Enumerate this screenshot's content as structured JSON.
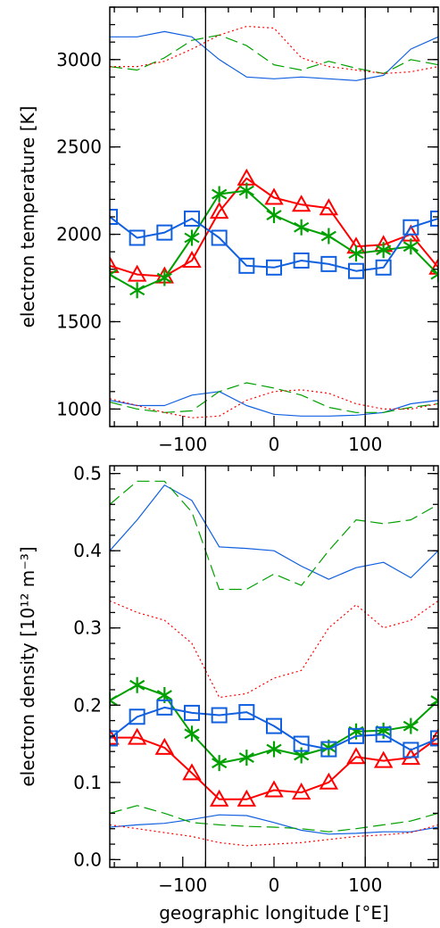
{
  "chart_data": [
    {
      "type": "line",
      "id": "temperature",
      "xlabel": "",
      "ylabel": "electron temperature [K]",
      "xlim": [
        -180,
        180
      ],
      "ylim": [
        900,
        3300
      ],
      "xticks": [
        -100,
        0,
        100
      ],
      "xtick_labels": [
        "−100",
        "0",
        "100"
      ],
      "yticks": [
        1000,
        1500,
        2000,
        2500,
        3000
      ],
      "ytick_labels": [
        "1000",
        "1500",
        "2000",
        "2500",
        "3000"
      ],
      "vlines": [
        -75,
        100
      ],
      "series": [
        {
          "color": "#ff0000",
          "marker": "triangle",
          "style": "solid",
          "x": [
            -180,
            -150,
            -120,
            -90,
            -60,
            -30,
            0,
            30,
            60,
            90,
            120,
            150,
            180
          ],
          "y": [
            1820,
            1770,
            1760,
            1850,
            2130,
            2320,
            2210,
            2170,
            2150,
            1930,
            1940,
            2000,
            1810
          ]
        },
        {
          "color": "#00a000",
          "marker": "asterisk",
          "style": "solid",
          "x": [
            -180,
            -150,
            -120,
            -90,
            -60,
            -30,
            0,
            30,
            60,
            90,
            120,
            150,
            180
          ],
          "y": [
            1770,
            1680,
            1750,
            1980,
            2230,
            2250,
            2110,
            2040,
            1990,
            1890,
            1910,
            1930,
            1770
          ]
        },
        {
          "color": "#1060e0",
          "marker": "square",
          "style": "solid",
          "x": [
            -180,
            -150,
            -120,
            -90,
            -60,
            -30,
            0,
            30,
            60,
            90,
            120,
            150,
            180
          ],
          "y": [
            2100,
            1980,
            2010,
            2090,
            1980,
            1820,
            1810,
            1850,
            1830,
            1790,
            1810,
            2040,
            2090
          ]
        },
        {
          "color": "#1060e0",
          "marker": "none",
          "style": "solid",
          "x": [
            -180,
            -150,
            -120,
            -90,
            -60,
            -30,
            0,
            30,
            60,
            90,
            120,
            150,
            180
          ],
          "y": [
            3130,
            3130,
            3160,
            3130,
            3000,
            2900,
            2890,
            2900,
            2890,
            2880,
            2910,
            3060,
            3130
          ]
        },
        {
          "color": "#00a000",
          "marker": "none",
          "style": "dashed",
          "x": [
            -180,
            -150,
            -120,
            -90,
            -60,
            -30,
            0,
            30,
            60,
            90,
            120,
            150,
            180
          ],
          "y": [
            2960,
            2940,
            3010,
            3110,
            3140,
            3080,
            2970,
            2940,
            2990,
            2950,
            2920,
            3000,
            2970
          ]
        },
        {
          "color": "#ff0000",
          "marker": "none",
          "style": "dotted",
          "x": [
            -180,
            -150,
            -120,
            -90,
            -60,
            -30,
            0,
            30,
            60,
            90,
            120,
            150,
            180
          ],
          "y": [
            2960,
            2960,
            2990,
            3060,
            3140,
            3190,
            3180,
            3010,
            2960,
            2940,
            2920,
            2930,
            2960
          ]
        },
        {
          "color": "#1060e0",
          "marker": "none",
          "style": "solid",
          "x": [
            -180,
            -150,
            -120,
            -90,
            -60,
            -30,
            0,
            30,
            60,
            90,
            120,
            150,
            180
          ],
          "y": [
            1050,
            1020,
            1020,
            1080,
            1100,
            1020,
            970,
            960,
            960,
            965,
            980,
            1030,
            1050
          ]
        },
        {
          "color": "#00a000",
          "marker": "none",
          "style": "dashed",
          "x": [
            -180,
            -150,
            -120,
            -90,
            -60,
            -30,
            0,
            30,
            60,
            90,
            120,
            150,
            180
          ],
          "y": [
            1040,
            1000,
            980,
            990,
            1100,
            1150,
            1120,
            1080,
            1010,
            980,
            980,
            1010,
            1030
          ]
        },
        {
          "color": "#ff0000",
          "marker": "none",
          "style": "dotted",
          "x": [
            -180,
            -150,
            -120,
            -90,
            -60,
            -30,
            0,
            30,
            60,
            90,
            120,
            150,
            180
          ],
          "y": [
            1060,
            1020,
            980,
            950,
            960,
            1050,
            1100,
            1110,
            1090,
            1030,
            1000,
            1000,
            1030
          ]
        }
      ]
    },
    {
      "type": "line",
      "id": "density",
      "xlabel": "geographic longitude [°E]",
      "ylabel": "electron density [10¹² m⁻³]",
      "xlim": [
        -180,
        180
      ],
      "ylim": [
        -0.01,
        0.51
      ],
      "xticks": [
        -100,
        0,
        100
      ],
      "xtick_labels": [
        "−100",
        "0",
        "100"
      ],
      "yticks": [
        0.0,
        0.1,
        0.2,
        0.3,
        0.4,
        0.5
      ],
      "ytick_labels": [
        "0.0",
        "0.1",
        "0.2",
        "0.3",
        "0.4",
        "0.5"
      ],
      "vlines": [
        -75,
        100
      ],
      "series": [
        {
          "color": "#ff0000",
          "marker": "triangle",
          "style": "solid",
          "x": [
            -180,
            -150,
            -120,
            -90,
            -60,
            -30,
            0,
            30,
            60,
            90,
            120,
            150,
            180
          ],
          "y": [
            0.158,
            0.158,
            0.145,
            0.112,
            0.078,
            0.078,
            0.09,
            0.087,
            0.1,
            0.133,
            0.128,
            0.132,
            0.158
          ]
        },
        {
          "color": "#00a000",
          "marker": "asterisk",
          "style": "solid",
          "x": [
            -180,
            -150,
            -120,
            -90,
            -60,
            -30,
            0,
            30,
            60,
            90,
            120,
            150,
            180
          ],
          "y": [
            0.206,
            0.226,
            0.213,
            0.163,
            0.125,
            0.132,
            0.143,
            0.135,
            0.145,
            0.166,
            0.167,
            0.173,
            0.206
          ]
        },
        {
          "color": "#1060e0",
          "marker": "square",
          "style": "solid",
          "x": [
            -180,
            -150,
            -120,
            -90,
            -60,
            -30,
            0,
            30,
            60,
            90,
            120,
            150,
            180
          ],
          "y": [
            0.157,
            0.185,
            0.197,
            0.19,
            0.187,
            0.191,
            0.173,
            0.15,
            0.143,
            0.16,
            0.162,
            0.142,
            0.157
          ]
        },
        {
          "color": "#1060e0",
          "marker": "none",
          "style": "solid",
          "x": [
            -180,
            -150,
            -120,
            -90,
            -60,
            -30,
            0,
            30,
            60,
            90,
            120,
            150,
            180
          ],
          "y": [
            0.4,
            0.44,
            0.485,
            0.465,
            0.405,
            0.403,
            0.4,
            0.38,
            0.363,
            0.378,
            0.385,
            0.365,
            0.4
          ]
        },
        {
          "color": "#00a000",
          "marker": "none",
          "style": "dashed",
          "x": [
            -180,
            -150,
            -120,
            -90,
            -60,
            -30,
            0,
            30,
            60,
            90,
            120,
            150,
            180
          ],
          "y": [
            0.46,
            0.49,
            0.49,
            0.45,
            0.35,
            0.35,
            0.37,
            0.355,
            0.4,
            0.44,
            0.435,
            0.44,
            0.46
          ]
        },
        {
          "color": "#ff0000",
          "marker": "none",
          "style": "dotted",
          "x": [
            -180,
            -150,
            -120,
            -90,
            -60,
            -30,
            0,
            30,
            60,
            90,
            120,
            150,
            180
          ],
          "y": [
            0.335,
            0.32,
            0.31,
            0.28,
            0.21,
            0.215,
            0.235,
            0.245,
            0.3,
            0.33,
            0.3,
            0.31,
            0.335
          ]
        },
        {
          "color": "#1060e0",
          "marker": "none",
          "style": "solid",
          "x": [
            -180,
            -150,
            -120,
            -90,
            -60,
            -30,
            0,
            30,
            60,
            90,
            120,
            150,
            180
          ],
          "y": [
            0.042,
            0.045,
            0.047,
            0.052,
            0.058,
            0.057,
            0.048,
            0.038,
            0.033,
            0.034,
            0.036,
            0.036,
            0.042
          ]
        },
        {
          "color": "#00a000",
          "marker": "none",
          "style": "dashed",
          "x": [
            -180,
            -150,
            -120,
            -90,
            -60,
            -30,
            0,
            30,
            60,
            90,
            120,
            150,
            180
          ],
          "y": [
            0.06,
            0.07,
            0.06,
            0.048,
            0.045,
            0.043,
            0.042,
            0.04,
            0.036,
            0.04,
            0.045,
            0.05,
            0.06
          ]
        },
        {
          "color": "#ff0000",
          "marker": "none",
          "style": "dotted",
          "x": [
            -180,
            -150,
            -120,
            -90,
            -60,
            -30,
            0,
            30,
            60,
            90,
            120,
            150,
            180
          ],
          "y": [
            0.045,
            0.04,
            0.035,
            0.03,
            0.022,
            0.018,
            0.02,
            0.022,
            0.026,
            0.03,
            0.032,
            0.035,
            0.045
          ]
        }
      ]
    }
  ]
}
